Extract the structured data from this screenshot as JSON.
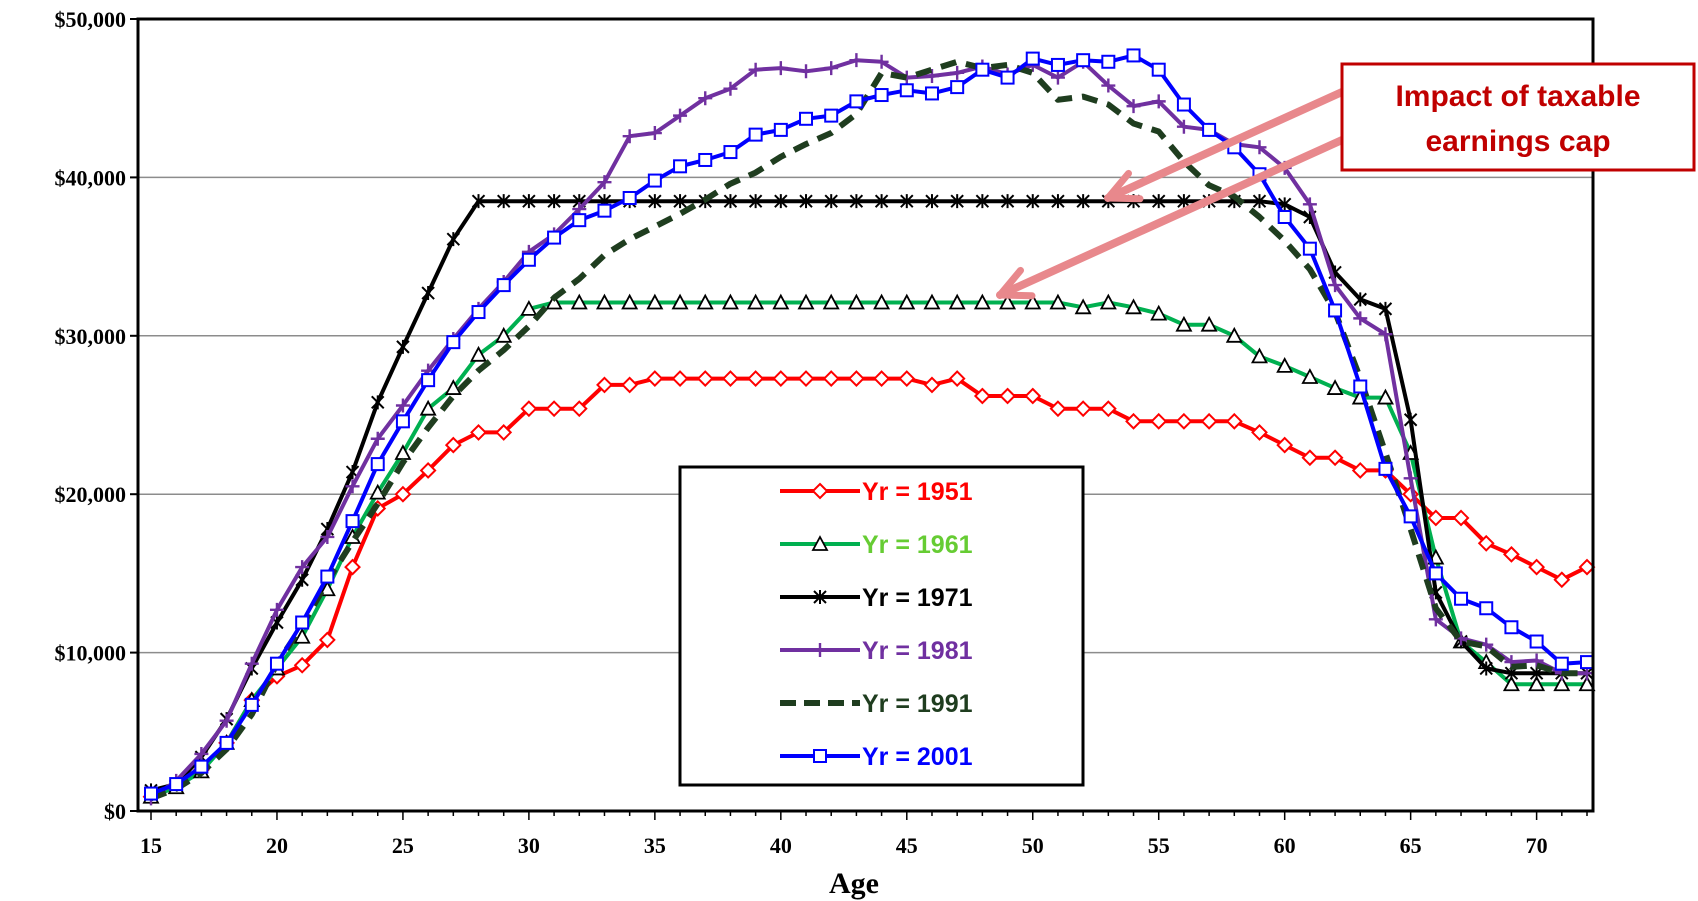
{
  "chart_data": {
    "type": "line",
    "title": "",
    "xlabel": "Age",
    "ylabel": "",
    "xlim": [
      15,
      72
    ],
    "ylim": [
      0,
      50000
    ],
    "x_ticks": [
      15,
      20,
      25,
      30,
      35,
      40,
      45,
      50,
      55,
      60,
      65,
      70
    ],
    "y_ticks": [
      {
        "value": 0,
        "label": "$0"
      },
      {
        "value": 10000,
        "label": "$10,000"
      },
      {
        "value": 20000,
        "label": "$20,000"
      },
      {
        "value": 30000,
        "label": "$30,000"
      },
      {
        "value": 40000,
        "label": "$40,000"
      },
      {
        "value": 50000,
        "label": "$50,000"
      }
    ],
    "grid": "horizontal",
    "legend_position": "center-bottom",
    "x": [
      15,
      16,
      17,
      18,
      19,
      20,
      21,
      22,
      23,
      24,
      25,
      26,
      27,
      28,
      29,
      30,
      31,
      32,
      33,
      34,
      35,
      36,
      37,
      38,
      39,
      40,
      41,
      42,
      43,
      44,
      45,
      46,
      47,
      48,
      49,
      50,
      51,
      52,
      53,
      54,
      55,
      56,
      57,
      58,
      59,
      60,
      61,
      62,
      63,
      64,
      65,
      66,
      67,
      68,
      69,
      70,
      71,
      72
    ],
    "series": [
      {
        "name": "Yr = 1951",
        "color": "#ff0000",
        "text_color": "#ff0000",
        "marker": "diamond",
        "dash": "",
        "values": [
          900,
          1600,
          2600,
          4300,
          7000,
          8500,
          9200,
          10800,
          15400,
          19100,
          20000,
          21500,
          23100,
          23900,
          23900,
          25400,
          25400,
          25400,
          26900,
          26900,
          27300,
          27300,
          27300,
          27300,
          27300,
          27300,
          27300,
          27300,
          27300,
          27300,
          27300,
          26900,
          27300,
          26200,
          26200,
          26200,
          25400,
          25400,
          25400,
          24600,
          24600,
          24600,
          24600,
          24600,
          23900,
          23100,
          22300,
          22300,
          21500,
          21500,
          20000,
          18500,
          18500,
          16900,
          16200,
          15400,
          14600,
          15400
        ]
      },
      {
        "name": "Yr = 1961",
        "color": "#00b050",
        "text_color": "#66cc33",
        "marker": "triangle",
        "dash": "",
        "values": [
          900,
          1500,
          2500,
          4300,
          7000,
          9000,
          11000,
          14000,
          17300,
          20100,
          22600,
          25400,
          26700,
          28800,
          30000,
          31700,
          32100,
          32100,
          32100,
          32100,
          32100,
          32100,
          32100,
          32100,
          32100,
          32100,
          32100,
          32100,
          32100,
          32100,
          32100,
          32100,
          32100,
          32100,
          32100,
          32100,
          32100,
          31800,
          32100,
          31800,
          31400,
          30700,
          30700,
          30000,
          28700,
          28100,
          27400,
          26700,
          26100,
          26100,
          22600,
          16000,
          10700,
          9400,
          8000,
          8000,
          8000,
          8000
        ]
      },
      {
        "name": "Yr = 1971",
        "color": "#000000",
        "text_color": "#000000",
        "marker": "star",
        "dash": "",
        "values": [
          1300,
          1700,
          3400,
          5800,
          9000,
          11900,
          14600,
          17800,
          21400,
          25800,
          29300,
          32700,
          36100,
          38500,
          38500,
          38500,
          38500,
          38500,
          38500,
          38500,
          38500,
          38500,
          38500,
          38500,
          38500,
          38500,
          38500,
          38500,
          38500,
          38500,
          38500,
          38500,
          38500,
          38500,
          38500,
          38500,
          38500,
          38500,
          38500,
          38500,
          38500,
          38500,
          38500,
          38500,
          38500,
          38300,
          37500,
          34000,
          32300,
          31700,
          24700,
          13800,
          10700,
          9000,
          8700,
          8700,
          8700,
          8700
        ]
      },
      {
        "name": "Yr = 1981",
        "color": "#7030a0",
        "text_color": "#7030a0",
        "marker": "plus",
        "dash": "",
        "values": [
          800,
          1900,
          3600,
          5700,
          9300,
          12700,
          15400,
          17300,
          20500,
          23500,
          25600,
          27800,
          29800,
          31700,
          33400,
          35300,
          36400,
          38000,
          39700,
          42600,
          42800,
          43900,
          45000,
          45600,
          46800,
          46900,
          46700,
          46900,
          47400,
          47300,
          46300,
          46400,
          46600,
          47000,
          46500,
          47100,
          46300,
          47300,
          45800,
          44500,
          44800,
          43200,
          43000,
          42100,
          41900,
          40600,
          38300,
          33200,
          31100,
          30100,
          21000,
          12100,
          10900,
          10500,
          9400,
          9500,
          8700,
          8700
        ]
      },
      {
        "name": "Yr = 1991",
        "color": "#1f3d1f",
        "text_color": "#1f3d1f",
        "marker": "none",
        "dash": "16,10",
        "values": [
          800,
          1400,
          2400,
          3900,
          6100,
          9300,
          11700,
          14500,
          17000,
          19400,
          22000,
          24200,
          26200,
          27800,
          29100,
          30600,
          32400,
          33600,
          35100,
          36100,
          36900,
          37700,
          38600,
          39600,
          40300,
          41300,
          42100,
          42800,
          44000,
          46600,
          46300,
          46800,
          47300,
          46900,
          47100,
          46600,
          44900,
          45100,
          44600,
          43400,
          42900,
          41000,
          39500,
          38800,
          37500,
          36000,
          34200,
          31500,
          27300,
          22600,
          17800,
          12800,
          10700,
          10400,
          9100,
          9200,
          8700,
          8700
        ]
      },
      {
        "name": "Yr = 2001",
        "color": "#0000ff",
        "text_color": "#0000ff",
        "marker": "square",
        "dash": "",
        "values": [
          1100,
          1700,
          2800,
          4300,
          6700,
          9300,
          11900,
          14800,
          18300,
          21900,
          24600,
          27200,
          29600,
          31500,
          33200,
          34800,
          36200,
          37300,
          37900,
          38700,
          39800,
          40700,
          41100,
          41600,
          42700,
          43000,
          43700,
          43900,
          44800,
          45200,
          45500,
          45300,
          45700,
          46800,
          46300,
          47500,
          47100,
          47400,
          47300,
          47700,
          46800,
          44600,
          43000,
          41900,
          40200,
          37500,
          35500,
          31600,
          26800,
          21600,
          18600,
          15000,
          13400,
          12800,
          11600,
          10700,
          9300,
          9400
        ]
      }
    ],
    "annotation": {
      "text_lines": [
        "Impact of taxable",
        "earnings cap"
      ],
      "color": "#c00000"
    }
  }
}
